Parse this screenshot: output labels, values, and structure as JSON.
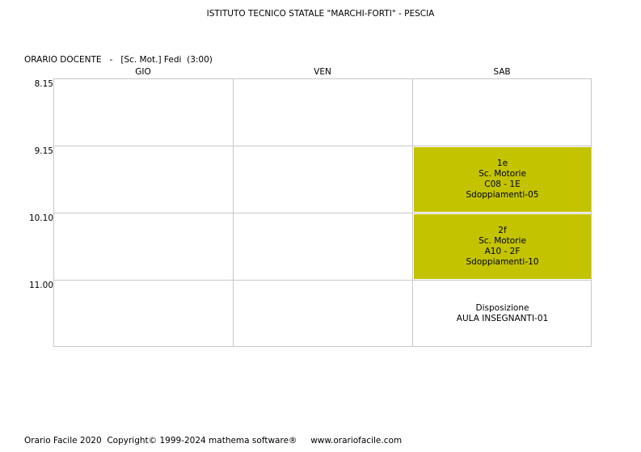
{
  "header": {
    "school": "ISTITUTO TECNICO STATALE \"MARCHI-FORTI\" - PESCIA",
    "subtitle": "ORARIO DOCENTE   -   [Sc. Mot.] Fedi  (3:00)"
  },
  "days": [
    "GIO",
    "VEN",
    "SAB"
  ],
  "times": [
    "8.15",
    "9.15",
    "10.10",
    "11.00"
  ],
  "lessons": [
    {
      "day": "SAB",
      "time": "9.15",
      "color": "#c3c300",
      "lines": [
        "1e",
        "Sc. Motorie",
        "C08 - 1E",
        "Sdoppiamenti-05"
      ]
    },
    {
      "day": "SAB",
      "time": "10.10",
      "color": "#c3c300",
      "lines": [
        "2f",
        "Sc. Motorie",
        "A10 - 2F",
        "Sdoppiamenti-10"
      ]
    },
    {
      "day": "SAB",
      "time": "11.00",
      "color": "#ffffff",
      "lines": [
        "Disposizione",
        "AULA INSEGNANTI-01"
      ]
    }
  ],
  "footer": "Orario Facile 2020  Copyright© 1999-2024 mathema software®     www.orariofacile.com"
}
